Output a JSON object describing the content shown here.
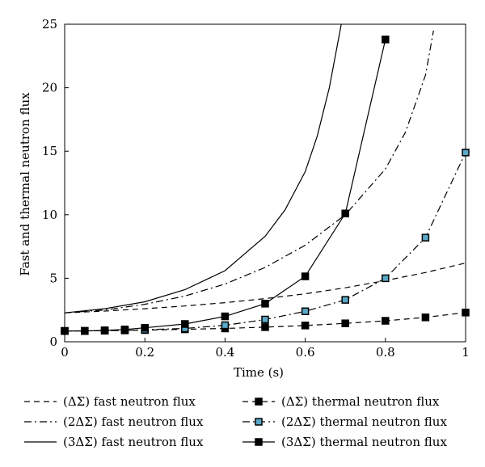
{
  "chart_data": {
    "type": "line",
    "title": "",
    "xlabel": "Time (s)",
    "ylabel": "Fast and thermal neutron flux",
    "xlim": [
      0,
      1
    ],
    "ylim": [
      0,
      25
    ],
    "x_ticks": [
      0,
      0.2,
      0.4,
      0.6,
      0.8,
      1
    ],
    "x_tick_labels": [
      "0",
      "0.2",
      "0.4",
      "0.6",
      "0.8",
      "1"
    ],
    "y_ticks": [
      0,
      5,
      10,
      15,
      20,
      25
    ],
    "y_tick_labels": [
      "0",
      "5",
      "10",
      "15",
      "20",
      "25"
    ],
    "grid": false,
    "legend_position": "bottom",
    "series": [
      {
        "name": "(ΔΣ) fast neutron flux",
        "style": "dashed",
        "marker": "none",
        "x": [
          0,
          0.1,
          0.2,
          0.3,
          0.4,
          0.5,
          0.6,
          0.7,
          0.8,
          0.9,
          1
        ],
        "y": [
          2.28,
          2.42,
          2.6,
          2.82,
          3.08,
          3.4,
          3.78,
          4.25,
          4.82,
          5.45,
          6.2
        ]
      },
      {
        "name": "(2ΔΣ) fast neutron flux",
        "style": "dashdot",
        "marker": "none",
        "x": [
          0,
          0.1,
          0.2,
          0.3,
          0.4,
          0.5,
          0.6,
          0.7,
          0.8,
          0.85,
          0.9,
          0.92
        ],
        "y": [
          2.28,
          2.5,
          2.95,
          3.6,
          4.55,
          5.85,
          7.6,
          10.0,
          13.6,
          16.5,
          21.0,
          24.5
        ]
      },
      {
        "name": "(3ΔΣ) fast neutron flux",
        "style": "solid",
        "marker": "none",
        "x": [
          0,
          0.1,
          0.2,
          0.3,
          0.4,
          0.5,
          0.55,
          0.6,
          0.63,
          0.66,
          0.69
        ],
        "y": [
          2.28,
          2.6,
          3.15,
          4.1,
          5.6,
          8.3,
          10.4,
          13.4,
          16.2,
          20.0,
          25.0
        ]
      },
      {
        "name": "(ΔΣ) thermal neutron flux",
        "style": "dashed",
        "marker": "square",
        "marker_fill": "#000000",
        "x": [
          0,
          0.05,
          0.1,
          0.15,
          0.2,
          0.3,
          0.4,
          0.5,
          0.6,
          0.7,
          0.8,
          0.9,
          1
        ],
        "y": [
          0.85,
          0.86,
          0.88,
          0.9,
          0.92,
          0.98,
          1.05,
          1.15,
          1.28,
          1.45,
          1.65,
          1.92,
          2.3
        ]
      },
      {
        "name": "(2ΔΣ) thermal neutron flux",
        "style": "dashdot",
        "marker": "square",
        "marker_fill": "#5aa9c9",
        "x": [
          0,
          0.05,
          0.1,
          0.15,
          0.2,
          0.3,
          0.4,
          0.5,
          0.6,
          0.7,
          0.8,
          0.9,
          1
        ],
        "y": [
          0.85,
          0.85,
          0.87,
          0.9,
          0.95,
          1.05,
          1.3,
          1.75,
          2.4,
          3.3,
          5.0,
          8.2,
          14.9
        ]
      },
      {
        "name": "(3ΔΣ) thermal neutron flux",
        "style": "solid",
        "marker": "square",
        "marker_fill": "#000000",
        "x": [
          0,
          0.05,
          0.1,
          0.15,
          0.2,
          0.3,
          0.4,
          0.5,
          0.6,
          0.7,
          0.8
        ],
        "y": [
          0.85,
          0.85,
          0.9,
          0.97,
          1.1,
          1.4,
          2.0,
          3.0,
          5.15,
          10.1,
          23.8
        ]
      }
    ]
  }
}
